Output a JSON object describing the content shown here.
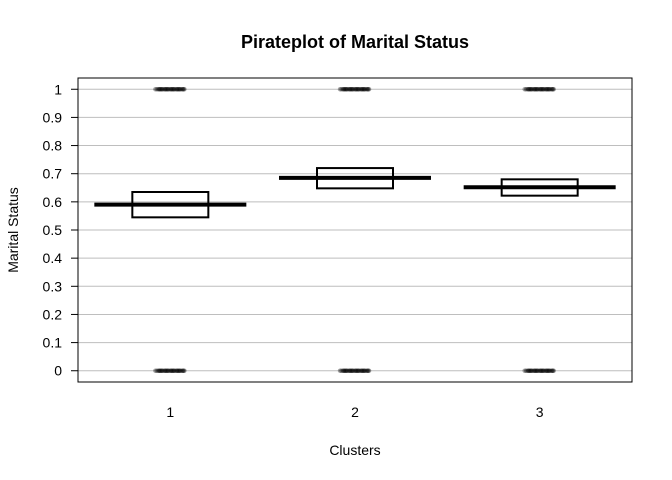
{
  "chart_data": {
    "type": "pirateplot",
    "title": "Pirateplot of Marital Status",
    "xlabel": "Clusters",
    "ylabel": "Marital Status",
    "categories": [
      "1",
      "2",
      "3"
    ],
    "y_ticks": [
      "0",
      "0.1",
      "0.2",
      "0.3",
      "0.4",
      "0.5",
      "0.6",
      "0.7",
      "0.8",
      "0.9",
      "1"
    ],
    "ylim": [
      -0.04,
      1.04
    ],
    "grid": true,
    "series": [
      {
        "category": "1",
        "mean": 0.59,
        "ci_low": 0.545,
        "ci_high": 0.635,
        "point_values": [
          0,
          1
        ]
      },
      {
        "category": "2",
        "mean": 0.685,
        "ci_low": 0.648,
        "ci_high": 0.72,
        "point_values": [
          0,
          1
        ]
      },
      {
        "category": "3",
        "mean": 0.652,
        "ci_low": 0.622,
        "ci_high": 0.68,
        "point_values": [
          0,
          1
        ]
      }
    ],
    "colors": {
      "mean_line": "#000000",
      "box": "#000000",
      "grid": "#bebebe",
      "points": "#000000"
    }
  }
}
